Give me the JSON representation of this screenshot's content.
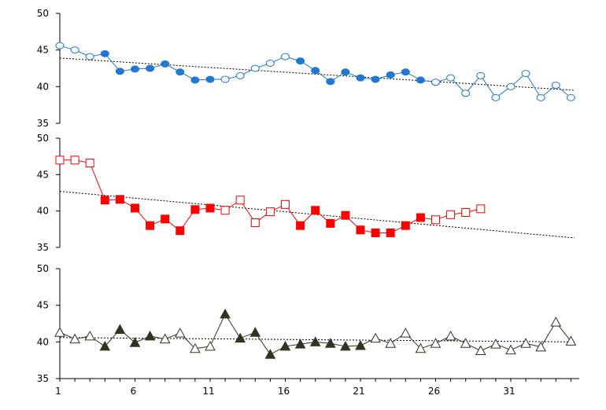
{
  "chart_data": [
    {
      "type": "line",
      "x": [
        1,
        2,
        3,
        4,
        5,
        6,
        7,
        8,
        9,
        10,
        11,
        12,
        13,
        14,
        15,
        16,
        17,
        18,
        19,
        20,
        21,
        22,
        23,
        24,
        25,
        26,
        27,
        28,
        29,
        30,
        31,
        32,
        33,
        34,
        35
      ],
      "series": [
        {
          "values": [
            45.6,
            45.0,
            44.1,
            44.5,
            42.1,
            42.4,
            42.5,
            43.1,
            42.0,
            40.9,
            41.0,
            41.0,
            41.5,
            42.5,
            43.2,
            44.1,
            43.5,
            42.2,
            40.7,
            42.0,
            41.2,
            41.0,
            41.6,
            42.0,
            40.9,
            40.6,
            41.2,
            39.1,
            41.5,
            38.5,
            40.0,
            41.8,
            38.5,
            40.2,
            38.5
          ],
          "filled": [
            false,
            false,
            false,
            true,
            true,
            true,
            true,
            true,
            true,
            true,
            true,
            false,
            false,
            false,
            false,
            false,
            true,
            true,
            true,
            true,
            true,
            true,
            true,
            true,
            true,
            false,
            false,
            false,
            false,
            false,
            false,
            false,
            false,
            false,
            false
          ],
          "marker": "circle",
          "color": "#1f78d1"
        }
      ],
      "trend": [
        43.9,
        39.5
      ],
      "ylim": [
        35,
        50
      ],
      "yticks": [
        "35",
        "40",
        "45",
        "50"
      ]
    },
    {
      "type": "line",
      "x": [
        1,
        2,
        3,
        4,
        5,
        6,
        7,
        8,
        9,
        10,
        11,
        12,
        13,
        14,
        15,
        16,
        17,
        18,
        19,
        20,
        21,
        22,
        23,
        24,
        25,
        26,
        27,
        28,
        29,
        30
      ],
      "series": [
        {
          "values": [
            47.0,
            47.0,
            46.6,
            41.5,
            41.6,
            40.4,
            38.0,
            38.9,
            37.3,
            40.2,
            40.4,
            40.1,
            41.5,
            38.4,
            39.9,
            40.9,
            38.0,
            40.1,
            38.3,
            39.4,
            37.4,
            37.0,
            37.0,
            38.0,
            39.1,
            38.8,
            39.5,
            39.8,
            40.3,
            null
          ],
          "filled": [
            false,
            false,
            false,
            true,
            true,
            true,
            true,
            true,
            true,
            true,
            true,
            false,
            false,
            false,
            false,
            false,
            true,
            true,
            true,
            true,
            true,
            true,
            true,
            true,
            true,
            false,
            false,
            false,
            false,
            false
          ],
          "marker": "square",
          "color": "#ff0000"
        }
      ],
      "trend": [
        42.7,
        36.3
      ],
      "ylim": [
        35,
        50
      ],
      "yticks": [
        "35",
        "40",
        "45",
        "50"
      ]
    },
    {
      "type": "line",
      "x": [
        1,
        2,
        3,
        4,
        5,
        6,
        7,
        8,
        9,
        10,
        11,
        12,
        13,
        14,
        15,
        16,
        17,
        18,
        19,
        20,
        21,
        22,
        23,
        24,
        25,
        26,
        27,
        28,
        29,
        30,
        31,
        32,
        33,
        34,
        35
      ],
      "series": [
        {
          "values": [
            41.3,
            40.4,
            40.8,
            39.4,
            41.7,
            39.9,
            40.8,
            40.4,
            41.2,
            39.1,
            39.4,
            43.8,
            40.5,
            41.3,
            38.3,
            39.4,
            39.7,
            40.0,
            39.8,
            39.4,
            39.5,
            40.5,
            39.8,
            41.2,
            39.1,
            39.8,
            40.8,
            39.8,
            38.8,
            39.7,
            38.9,
            39.8,
            39.3,
            42.7,
            40.1
          ],
          "filled": [
            false,
            false,
            false,
            true,
            true,
            true,
            true,
            false,
            false,
            false,
            false,
            true,
            true,
            true,
            true,
            true,
            true,
            true,
            true,
            true,
            true,
            false,
            false,
            false,
            false,
            false,
            false,
            false,
            false,
            false,
            false,
            false,
            false,
            false,
            false
          ],
          "marker": "triangle",
          "color": "#333322"
        }
      ],
      "trend": [
        40.6,
        40.0
      ],
      "ylim": [
        35,
        50
      ],
      "yticks": [
        "35",
        "40",
        "45",
        "50"
      ]
    }
  ],
  "xaxis": {
    "ticks": [
      1,
      6,
      11,
      16,
      21,
      26,
      31
    ],
    "tick_labels": [
      "1",
      "6",
      "11",
      "16",
      "21",
      "26",
      "31"
    ]
  }
}
